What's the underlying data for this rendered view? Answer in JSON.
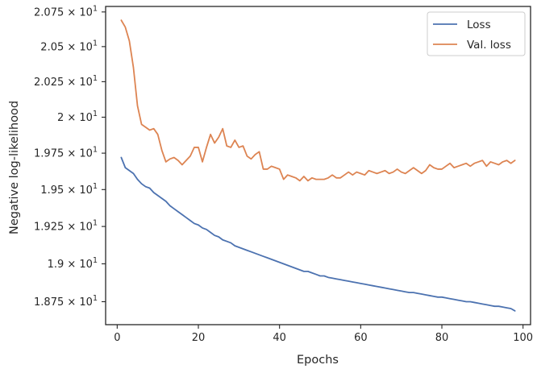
{
  "chart_data": {
    "type": "line",
    "title": "",
    "xlabel": "Epochs",
    "ylabel": "Negative log-likelihood",
    "xlim": [
      -2.85,
      101.85
    ],
    "ylim": [
      18.6,
      20.79
    ],
    "yscale": "log",
    "grid": false,
    "legend_position": "upper right",
    "x_ticks": [
      0,
      20,
      40,
      60,
      80,
      100
    ],
    "x_tick_labels": [
      "0",
      "20",
      "40",
      "60",
      "80",
      "100"
    ],
    "y_ticks": [
      18.75,
      19.0,
      19.25,
      19.5,
      19.75,
      20.0,
      20.25,
      20.5,
      20.75
    ],
    "y_tick_labels": [
      {
        "mantissa": "1.875",
        "exponent": "1"
      },
      {
        "mantissa": "1.9",
        "exponent": "1"
      },
      {
        "mantissa": "1.925",
        "exponent": "1"
      },
      {
        "mantissa": "1.95",
        "exponent": "1"
      },
      {
        "mantissa": "1.975",
        "exponent": "1"
      },
      {
        "mantissa": "2",
        "exponent": "1"
      },
      {
        "mantissa": "2.025",
        "exponent": "1"
      },
      {
        "mantissa": "2.05",
        "exponent": "1"
      },
      {
        "mantissa": "2.075",
        "exponent": "1"
      }
    ],
    "series": [
      {
        "name": "Loss",
        "color": "#4c72b0",
        "x": [
          1,
          2,
          3,
          4,
          5,
          6,
          7,
          8,
          9,
          10,
          11,
          12,
          13,
          14,
          15,
          16,
          17,
          18,
          19,
          20,
          21,
          22,
          23,
          24,
          25,
          26,
          27,
          28,
          29,
          30,
          31,
          32,
          33,
          34,
          35,
          36,
          37,
          38,
          39,
          40,
          41,
          42,
          43,
          44,
          45,
          46,
          47,
          48,
          49,
          50,
          51,
          52,
          53,
          54,
          55,
          56,
          57,
          58,
          59,
          60,
          61,
          62,
          63,
          64,
          65,
          66,
          67,
          68,
          69,
          70,
          71,
          72,
          73,
          74,
          75,
          76,
          77,
          78,
          79,
          80,
          81,
          82,
          83,
          84,
          85,
          86,
          87,
          88,
          89,
          90,
          91,
          92,
          93,
          94,
          95,
          96,
          97,
          98
        ],
        "values": [
          19.72,
          19.65,
          19.63,
          19.61,
          19.57,
          19.54,
          19.52,
          19.51,
          19.48,
          19.46,
          19.44,
          19.42,
          19.39,
          19.37,
          19.35,
          19.33,
          19.31,
          19.29,
          19.27,
          19.26,
          19.24,
          19.23,
          19.21,
          19.19,
          19.18,
          19.16,
          19.15,
          19.14,
          19.12,
          19.11,
          19.1,
          19.09,
          19.08,
          19.07,
          19.06,
          19.05,
          19.04,
          19.03,
          19.02,
          19.01,
          19.0,
          18.99,
          18.98,
          18.97,
          18.96,
          18.95,
          18.95,
          18.94,
          18.93,
          18.92,
          18.92,
          18.91,
          18.905,
          18.9,
          18.895,
          18.89,
          18.885,
          18.88,
          18.875,
          18.87,
          18.865,
          18.86,
          18.855,
          18.85,
          18.845,
          18.84,
          18.835,
          18.83,
          18.825,
          18.82,
          18.815,
          18.81,
          18.81,
          18.805,
          18.8,
          18.795,
          18.79,
          18.785,
          18.78,
          18.78,
          18.775,
          18.77,
          18.765,
          18.76,
          18.755,
          18.75,
          18.75,
          18.745,
          18.74,
          18.735,
          18.73,
          18.725,
          18.72,
          18.72,
          18.715,
          18.71,
          18.705,
          18.69
        ]
      },
      {
        "name": "Val. loss",
        "color": "#dd8452",
        "x": [
          1,
          2,
          3,
          4,
          5,
          6,
          7,
          8,
          9,
          10,
          11,
          12,
          13,
          14,
          15,
          16,
          17,
          18,
          19,
          20,
          21,
          22,
          23,
          24,
          25,
          26,
          27,
          28,
          29,
          30,
          31,
          32,
          33,
          34,
          35,
          36,
          37,
          38,
          39,
          40,
          41,
          42,
          43,
          44,
          45,
          46,
          47,
          48,
          49,
          50,
          51,
          52,
          53,
          54,
          55,
          56,
          57,
          58,
          59,
          60,
          61,
          62,
          63,
          64,
          65,
          66,
          67,
          68,
          69,
          70,
          71,
          72,
          73,
          74,
          75,
          76,
          77,
          78,
          79,
          80,
          81,
          82,
          83,
          84,
          85,
          86,
          87,
          88,
          89,
          90,
          91,
          92,
          93,
          94,
          95,
          96,
          97,
          98
        ],
        "values": [
          20.69,
          20.64,
          20.54,
          20.35,
          20.08,
          19.95,
          19.93,
          19.91,
          19.92,
          19.88,
          19.77,
          19.69,
          19.71,
          19.72,
          19.7,
          19.67,
          19.7,
          19.73,
          19.79,
          19.79,
          19.69,
          19.79,
          19.88,
          19.82,
          19.86,
          19.92,
          19.8,
          19.79,
          19.84,
          19.79,
          19.8,
          19.73,
          19.71,
          19.74,
          19.76,
          19.64,
          19.64,
          19.66,
          19.65,
          19.64,
          19.57,
          19.6,
          19.59,
          19.58,
          19.56,
          19.59,
          19.56,
          19.58,
          19.57,
          19.57,
          19.57,
          19.58,
          19.6,
          19.58,
          19.58,
          19.6,
          19.62,
          19.6,
          19.62,
          19.61,
          19.6,
          19.63,
          19.62,
          19.61,
          19.62,
          19.63,
          19.61,
          19.62,
          19.64,
          19.62,
          19.61,
          19.63,
          19.65,
          19.63,
          19.61,
          19.63,
          19.67,
          19.65,
          19.64,
          19.64,
          19.66,
          19.68,
          19.65,
          19.66,
          19.67,
          19.68,
          19.66,
          19.68,
          19.69,
          19.7,
          19.66,
          19.69,
          19.68,
          19.67,
          19.69,
          19.7,
          19.68,
          19.7
        ]
      }
    ]
  }
}
